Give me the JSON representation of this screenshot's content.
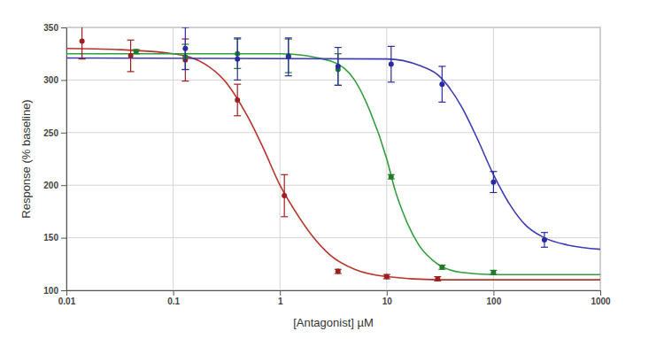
{
  "chart_data": {
    "type": "scatter",
    "x_label": "[Antagonist] µM",
    "y_label": "Response (% baseline)",
    "log": "x",
    "grid": true,
    "xlim": [
      0.01,
      1000
    ],
    "xticks": [
      0.01,
      0.1,
      1,
      10,
      100,
      1000
    ],
    "ylim": [
      100,
      350
    ],
    "yticks": [
      100,
      150,
      200,
      250,
      300,
      350
    ],
    "series": [
      {
        "type": "line",
        "color": "#b5352b",
        "line_style": "solid",
        "x": [
          0.01,
          0.03,
          0.1,
          0.2,
          0.3,
          0.5,
          0.7,
          1,
          1.5,
          2,
          3,
          5,
          10,
          30,
          100,
          1000
        ],
        "values": [
          330,
          329,
          325,
          315,
          300,
          265,
          235,
          200,
          170,
          152,
          133,
          120,
          113,
          110,
          110,
          110
        ]
      },
      {
        "type": "line",
        "color": "#2f9e3c",
        "line_style": "solid",
        "x": [
          0.01,
          1,
          3,
          5,
          7,
          10,
          12,
          15,
          20,
          30,
          50,
          100,
          1000
        ],
        "values": [
          325,
          325,
          318,
          300,
          270,
          225,
          195,
          168,
          143,
          125,
          117,
          115,
          115
        ]
      },
      {
        "type": "line",
        "color": "#3b3bb5",
        "line_style": "solid",
        "x": [
          0.01,
          10,
          20,
          30,
          50,
          70,
          100,
          150,
          200,
          300,
          500,
          1000
        ],
        "values": [
          321,
          320,
          314,
          305,
          275,
          245,
          210,
          178,
          162,
          150,
          143,
          139
        ]
      },
      {
        "type": "scatter",
        "color": "#9e1f1f",
        "marker": "circle",
        "x": [
          0.014,
          0.04,
          0.13,
          0.4,
          1.1,
          3.5,
          10,
          30
        ],
        "values": [
          337,
          323,
          319,
          281,
          190,
          118,
          113,
          111
        ],
        "errors": [
          17,
          15,
          20,
          15,
          20,
          2,
          2,
          2
        ]
      },
      {
        "type": "scatter",
        "color": "#1f7a2a",
        "marker": "circle",
        "x": [
          0.045,
          0.13,
          0.4,
          1.2,
          3.5,
          11,
          33,
          100
        ],
        "values": [
          327,
          322,
          325,
          323,
          310,
          208,
          122,
          117
        ],
        "errors": [
          2,
          12,
          14,
          16,
          15,
          2,
          2,
          2
        ]
      },
      {
        "type": "scatter",
        "color": "#2a2aa0",
        "marker": "circle",
        "x": [
          0.13,
          0.4,
          1.2,
          3.5,
          11,
          33,
          100,
          300
        ],
        "values": [
          330,
          320,
          322,
          313,
          315,
          296,
          203,
          148
        ],
        "errors": [
          20,
          20,
          18,
          18,
          17,
          17,
          10,
          7
        ]
      }
    ]
  }
}
